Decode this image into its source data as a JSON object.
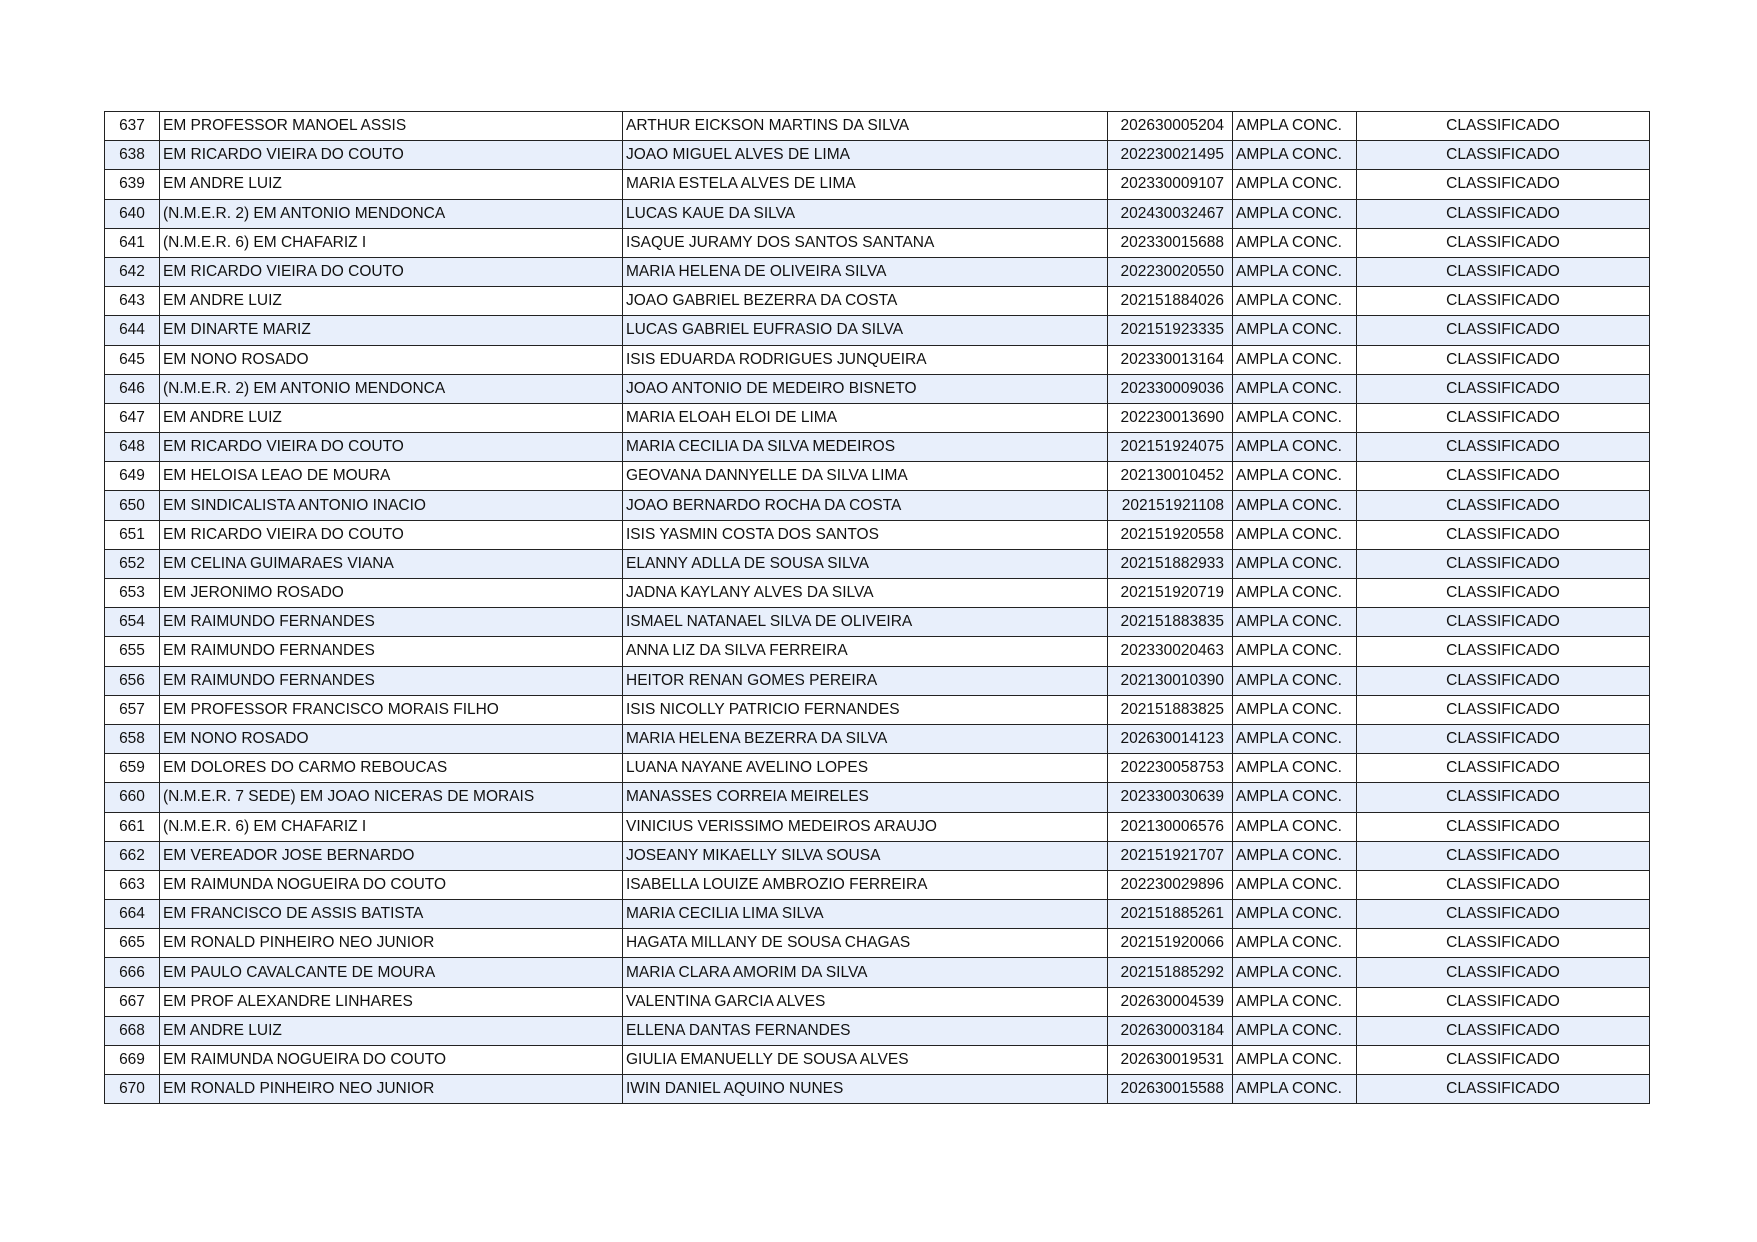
{
  "table": {
    "rows": [
      {
        "n": "637",
        "school": "EM PROFESSOR MANOEL ASSIS",
        "name": "ARTHUR EICKSON MARTINS DA SILVA",
        "id": "202630005204",
        "quota": "AMPLA CONC.",
        "status": "CLASSIFICADO"
      },
      {
        "n": "638",
        "school": "EM RICARDO VIEIRA DO COUTO",
        "name": "JOAO MIGUEL ALVES DE LIMA",
        "id": "202230021495",
        "quota": "AMPLA CONC.",
        "status": "CLASSIFICADO"
      },
      {
        "n": "639",
        "school": "EM ANDRE LUIZ",
        "name": "MARIA ESTELA ALVES DE LIMA",
        "id": "202330009107",
        "quota": "AMPLA CONC.",
        "status": "CLASSIFICADO"
      },
      {
        "n": "640",
        "school": "(N.M.E.R. 2) EM ANTONIO MENDONCA",
        "name": "LUCAS KAUE DA SILVA",
        "id": "202430032467",
        "quota": "AMPLA CONC.",
        "status": "CLASSIFICADO"
      },
      {
        "n": "641",
        "school": "(N.M.E.R. 6) EM CHAFARIZ I",
        "name": "ISAQUE JURAMY DOS SANTOS SANTANA",
        "id": "202330015688",
        "quota": "AMPLA CONC.",
        "status": "CLASSIFICADO"
      },
      {
        "n": "642",
        "school": "EM RICARDO VIEIRA DO COUTO",
        "name": "MARIA HELENA DE OLIVEIRA SILVA",
        "id": "202230020550",
        "quota": "AMPLA CONC.",
        "status": "CLASSIFICADO"
      },
      {
        "n": "643",
        "school": "EM ANDRE LUIZ",
        "name": "JOAO GABRIEL BEZERRA DA COSTA",
        "id": "202151884026",
        "quota": "AMPLA CONC.",
        "status": "CLASSIFICADO"
      },
      {
        "n": "644",
        "school": "EM DINARTE MARIZ",
        "name": "LUCAS GABRIEL EUFRASIO DA SILVA",
        "id": "202151923335",
        "quota": "AMPLA CONC.",
        "status": "CLASSIFICADO"
      },
      {
        "n": "645",
        "school": "EM NONO ROSADO",
        "name": "ISIS EDUARDA RODRIGUES JUNQUEIRA",
        "id": "202330013164",
        "quota": "AMPLA CONC.",
        "status": "CLASSIFICADO"
      },
      {
        "n": "646",
        "school": "(N.M.E.R. 2) EM ANTONIO MENDONCA",
        "name": "JOAO ANTONIO DE MEDEIRO BISNETO",
        "id": "202330009036",
        "quota": "AMPLA CONC.",
        "status": "CLASSIFICADO"
      },
      {
        "n": "647",
        "school": "EM ANDRE LUIZ",
        "name": "MARIA ELOAH ELOI DE LIMA",
        "id": "202230013690",
        "quota": "AMPLA CONC.",
        "status": "CLASSIFICADO"
      },
      {
        "n": "648",
        "school": "EM RICARDO VIEIRA DO COUTO",
        "name": "MARIA CECILIA DA SILVA MEDEIROS",
        "id": "202151924075",
        "quota": "AMPLA CONC.",
        "status": "CLASSIFICADO"
      },
      {
        "n": "649",
        "school": "EM HELOISA LEAO DE MOURA",
        "name": "GEOVANA DANNYELLE DA SILVA LIMA",
        "id": "202130010452",
        "quota": "AMPLA CONC.",
        "status": "CLASSIFICADO"
      },
      {
        "n": "650",
        "school": "EM SINDICALISTA ANTONIO INACIO",
        "name": "JOAO BERNARDO ROCHA DA COSTA",
        "id": "202151921108",
        "quota": "AMPLA CONC.",
        "status": "CLASSIFICADO"
      },
      {
        "n": "651",
        "school": "EM RICARDO VIEIRA DO COUTO",
        "name": "ISIS YASMIN COSTA DOS SANTOS",
        "id": "202151920558",
        "quota": "AMPLA CONC.",
        "status": "CLASSIFICADO"
      },
      {
        "n": "652",
        "school": "EM CELINA GUIMARAES VIANA",
        "name": "ELANNY ADLLA DE SOUSA SILVA",
        "id": "202151882933",
        "quota": "AMPLA CONC.",
        "status": "CLASSIFICADO"
      },
      {
        "n": "653",
        "school": "EM JERONIMO ROSADO",
        "name": "JADNA KAYLANY ALVES DA SILVA",
        "id": "202151920719",
        "quota": "AMPLA CONC.",
        "status": "CLASSIFICADO"
      },
      {
        "n": "654",
        "school": "EM RAIMUNDO FERNANDES",
        "name": "ISMAEL NATANAEL SILVA DE OLIVEIRA",
        "id": "202151883835",
        "quota": "AMPLA CONC.",
        "status": "CLASSIFICADO"
      },
      {
        "n": "655",
        "school": "EM RAIMUNDO FERNANDES",
        "name": "ANNA LIZ DA SILVA FERREIRA",
        "id": "202330020463",
        "quota": "AMPLA CONC.",
        "status": "CLASSIFICADO"
      },
      {
        "n": "656",
        "school": "EM RAIMUNDO FERNANDES",
        "name": "HEITOR RENAN GOMES PEREIRA",
        "id": "202130010390",
        "quota": "AMPLA CONC.",
        "status": "CLASSIFICADO"
      },
      {
        "n": "657",
        "school": "EM PROFESSOR FRANCISCO MORAIS FILHO",
        "name": "ISIS NICOLLY PATRICIO FERNANDES",
        "id": "202151883825",
        "quota": "AMPLA CONC.",
        "status": "CLASSIFICADO"
      },
      {
        "n": "658",
        "school": "EM NONO ROSADO",
        "name": "MARIA HELENA BEZERRA DA SILVA",
        "id": "202630014123",
        "quota": "AMPLA CONC.",
        "status": "CLASSIFICADO"
      },
      {
        "n": "659",
        "school": "EM DOLORES DO CARMO REBOUCAS",
        "name": "LUANA NAYANE AVELINO LOPES",
        "id": "202230058753",
        "quota": "AMPLA CONC.",
        "status": "CLASSIFICADO"
      },
      {
        "n": "660",
        "school": "(N.M.E.R. 7 SEDE) EM JOAO NICERAS DE MORAIS",
        "name": "MANASSES CORREIA MEIRELES",
        "id": "202330030639",
        "quota": "AMPLA CONC.",
        "status": "CLASSIFICADO"
      },
      {
        "n": "661",
        "school": "(N.M.E.R. 6) EM CHAFARIZ I",
        "name": "VINICIUS VERISSIMO MEDEIROS ARAUJO",
        "id": "202130006576",
        "quota": "AMPLA CONC.",
        "status": "CLASSIFICADO"
      },
      {
        "n": "662",
        "school": "EM VEREADOR JOSE BERNARDO",
        "name": "JOSEANY MIKAELLY SILVA SOUSA",
        "id": "202151921707",
        "quota": "AMPLA CONC.",
        "status": "CLASSIFICADO"
      },
      {
        "n": "663",
        "school": "EM RAIMUNDA NOGUEIRA DO COUTO",
        "name": "ISABELLA LOUIZE AMBROZIO FERREIRA",
        "id": "202230029896",
        "quota": "AMPLA CONC.",
        "status": "CLASSIFICADO"
      },
      {
        "n": "664",
        "school": "EM FRANCISCO DE ASSIS BATISTA",
        "name": "MARIA CECILIA LIMA SILVA",
        "id": "202151885261",
        "quota": "AMPLA CONC.",
        "status": "CLASSIFICADO"
      },
      {
        "n": "665",
        "school": "EM RONALD PINHEIRO NEO JUNIOR",
        "name": "HAGATA MILLANY DE SOUSA CHAGAS",
        "id": "202151920066",
        "quota": "AMPLA CONC.",
        "status": "CLASSIFICADO"
      },
      {
        "n": "666",
        "school": "EM PAULO CAVALCANTE DE MOURA",
        "name": "MARIA CLARA AMORIM DA SILVA",
        "id": "202151885292",
        "quota": "AMPLA CONC.",
        "status": "CLASSIFICADO"
      },
      {
        "n": "667",
        "school": "EM PROF ALEXANDRE LINHARES",
        "name": "VALENTINA GARCIA ALVES",
        "id": "202630004539",
        "quota": "AMPLA CONC.",
        "status": "CLASSIFICADO"
      },
      {
        "n": "668",
        "school": "EM ANDRE LUIZ",
        "name": "ELLENA DANTAS FERNANDES",
        "id": "202630003184",
        "quota": "AMPLA CONC.",
        "status": "CLASSIFICADO"
      },
      {
        "n": "669",
        "school": "EM RAIMUNDA NOGUEIRA DO COUTO",
        "name": "GIULIA EMANUELLY DE SOUSA ALVES",
        "id": "202630019531",
        "quota": "AMPLA CONC.",
        "status": "CLASSIFICADO"
      },
      {
        "n": "670",
        "school": "EM RONALD PINHEIRO NEO JUNIOR",
        "name": "IWIN DANIEL AQUINO NUNES",
        "id": "202630015588",
        "quota": "AMPLA CONC.",
        "status": "CLASSIFICADO"
      }
    ]
  },
  "colors": {
    "alt_row": "#e8effb",
    "border": "#222222"
  }
}
